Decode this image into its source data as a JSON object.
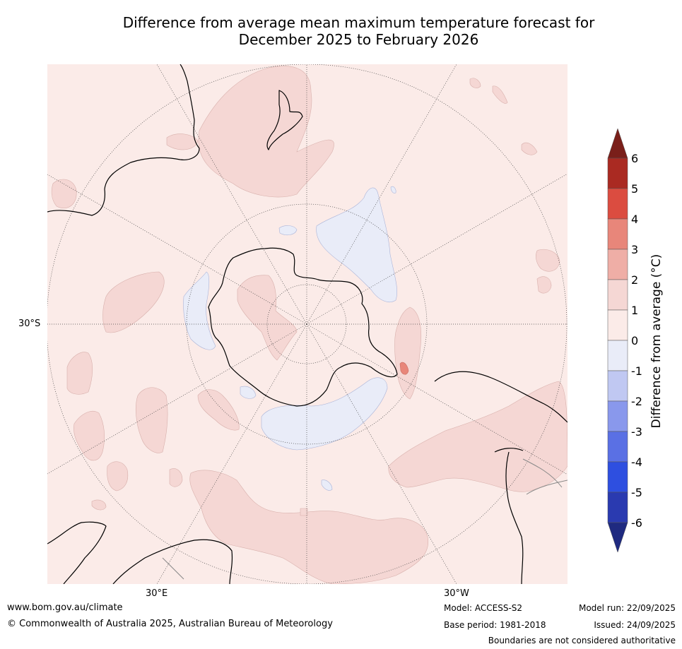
{
  "title": {
    "line1": "Difference from average mean maximum temperature forecast for",
    "line2": "December 2025 to February 2026"
  },
  "map": {
    "projection": "south-polar stereographic",
    "lat_label": "30°S",
    "lon_labels": [
      "30°E",
      "30°W"
    ],
    "background_color": "#fbebe8"
  },
  "colorbar": {
    "title": "Difference from average (°C)",
    "ticks": [
      "6",
      "5",
      "4",
      "3",
      "2",
      "1",
      "0",
      "-1",
      "-2",
      "-3",
      "-4",
      "-5",
      "-6"
    ],
    "bins": [
      {
        "range": ">6",
        "color": "#7a1f1a"
      },
      {
        "range": "5 to 6",
        "color": "#aa2a22"
      },
      {
        "range": "4 to 5",
        "color": "#db4c40"
      },
      {
        "range": "3 to 4",
        "color": "#e8867a"
      },
      {
        "range": "2 to 3",
        "color": "#efaea6"
      },
      {
        "range": "1 to 2",
        "color": "#f5d7d4"
      },
      {
        "range": "0 to 1",
        "color": "#fbebe8"
      },
      {
        "range": "-1 to 0",
        "color": "#e9ecf8"
      },
      {
        "range": "-2 to -1",
        "color": "#c0c8f2"
      },
      {
        "range": "-3 to -2",
        "color": "#8998ec"
      },
      {
        "range": "-4 to -3",
        "color": "#5a70e4"
      },
      {
        "range": "-5 to -4",
        "color": "#2e4fe0"
      },
      {
        "range": "-6 to -5",
        "color": "#2a3ab0"
      },
      {
        "range": "<-6",
        "color": "#1f2a80"
      }
    ]
  },
  "footer": {
    "website": "www.bom.gov.au/climate",
    "copyright": "© Commonwealth of Australia 2025, Australian Bureau of Meteorology",
    "model": "Model: ACCESS-S2",
    "base_period": "Base period: 1981-2018",
    "model_run": "Model run: 22/09/2025",
    "issued": "Issued: 24/09/2025",
    "disclaimer": "Boundaries are not considered authoritative"
  }
}
